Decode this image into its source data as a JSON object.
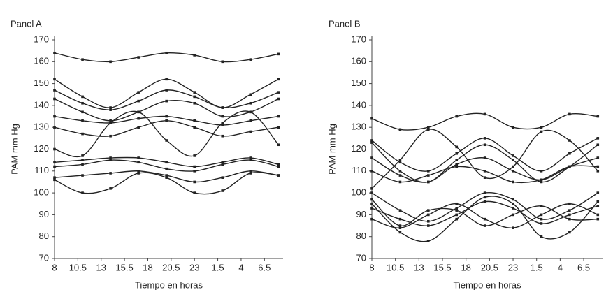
{
  "chart_data": [
    {
      "type": "line",
      "title": "Panel A",
      "y_label": "PAM mm Hg",
      "x_label": "Tiempo en horas",
      "color": "#222222",
      "x": [
        8,
        11,
        14,
        17,
        20,
        23,
        26,
        29,
        32
      ],
      "xlim": [
        8,
        32.5
      ],
      "ylim": [
        70,
        170
      ],
      "xticks": [
        8,
        10.5,
        13,
        15.5,
        18,
        20.5,
        23,
        {
          "value": 25.5,
          "label": "1.5"
        },
        {
          "value": 28,
          "label": "4"
        },
        {
          "value": 30.5,
          "label": "6.5"
        }
      ],
      "yticks": [
        70,
        80,
        90,
        100,
        110,
        120,
        130,
        140,
        150,
        160,
        170
      ],
      "series": [
        {
          "values": [
            164,
            161,
            160,
            162,
            164,
            163,
            160,
            161,
            163.5
          ]
        },
        {
          "values": [
            152,
            144,
            139,
            146,
            152,
            146,
            139,
            145,
            152
          ]
        },
        {
          "values": [
            147,
            141,
            138,
            142,
            147,
            144,
            139,
            141,
            146
          ]
        },
        {
          "values": [
            143,
            137,
            133,
            137,
            142,
            141,
            135,
            137,
            143
          ]
        },
        {
          "values": [
            135,
            133,
            132,
            134,
            135,
            133,
            131,
            133,
            135
          ]
        },
        {
          "values": [
            130,
            127,
            126,
            130,
            133,
            130,
            126,
            128,
            130
          ]
        },
        {
          "values": [
            120,
            117,
            132,
            137,
            124,
            117,
            132,
            137,
            122
          ]
        },
        {
          "values": [
            114,
            115,
            116,
            116,
            114,
            112,
            114,
            116,
            113
          ]
        },
        {
          "values": [
            112,
            113,
            115,
            114,
            111,
            110,
            113,
            115,
            112
          ]
        },
        {
          "values": [
            107,
            108,
            109,
            110,
            108,
            105,
            107,
            110,
            108
          ]
        },
        {
          "values": [
            106,
            100,
            102,
            109,
            107,
            100,
            101,
            109,
            108
          ]
        }
      ]
    },
    {
      "type": "line",
      "title": "Panel B",
      "y_label": "PAM mm Hg",
      "x_label": "Tiempo en horas",
      "color": "#222222",
      "x": [
        8,
        11,
        14,
        17,
        20,
        23,
        26,
        29,
        32
      ],
      "xlim": [
        8,
        32.5
      ],
      "ylim": [
        70,
        170
      ],
      "xticks": [
        8,
        10.5,
        13,
        15.5,
        18,
        20.5,
        23,
        {
          "value": 25.5,
          "label": "1.5"
        },
        {
          "value": 28,
          "label": "4"
        },
        {
          "value": 30.5,
          "label": "6.5"
        }
      ],
      "yticks": [
        70,
        80,
        90,
        100,
        110,
        120,
        130,
        140,
        150,
        160,
        170
      ],
      "series": [
        {
          "values": [
            134,
            129,
            130,
            135,
            136,
            130,
            130,
            136,
            135
          ]
        },
        {
          "values": [
            102,
            115,
            129,
            121,
            107,
            112,
            128,
            124,
            110
          ]
        },
        {
          "values": [
            124,
            114,
            110,
            118,
            125,
            117,
            110,
            118,
            125
          ]
        },
        {
          "values": [
            123,
            110,
            105,
            115,
            122,
            115,
            105,
            112,
            122
          ]
        },
        {
          "values": [
            116,
            108,
            105,
            113,
            116,
            110,
            106,
            112,
            116
          ]
        },
        {
          "values": [
            110,
            105,
            108,
            112,
            110,
            105,
            106,
            112,
            112
          ]
        },
        {
          "values": [
            100,
            92,
            87,
            93,
            100,
            97,
            88,
            92,
            100
          ]
        },
        {
          "values": [
            97,
            85,
            92,
            92,
            85,
            90,
            94,
            88,
            88
          ]
        },
        {
          "values": [
            95,
            82,
            78,
            88,
            98,
            95,
            80,
            82,
            96
          ]
        },
        {
          "values": [
            88,
            84,
            90,
            95,
            88,
            84,
            90,
            95,
            90
          ]
        },
        {
          "values": [
            93,
            88,
            85,
            90,
            96,
            93,
            86,
            90,
            94
          ]
        }
      ]
    }
  ]
}
